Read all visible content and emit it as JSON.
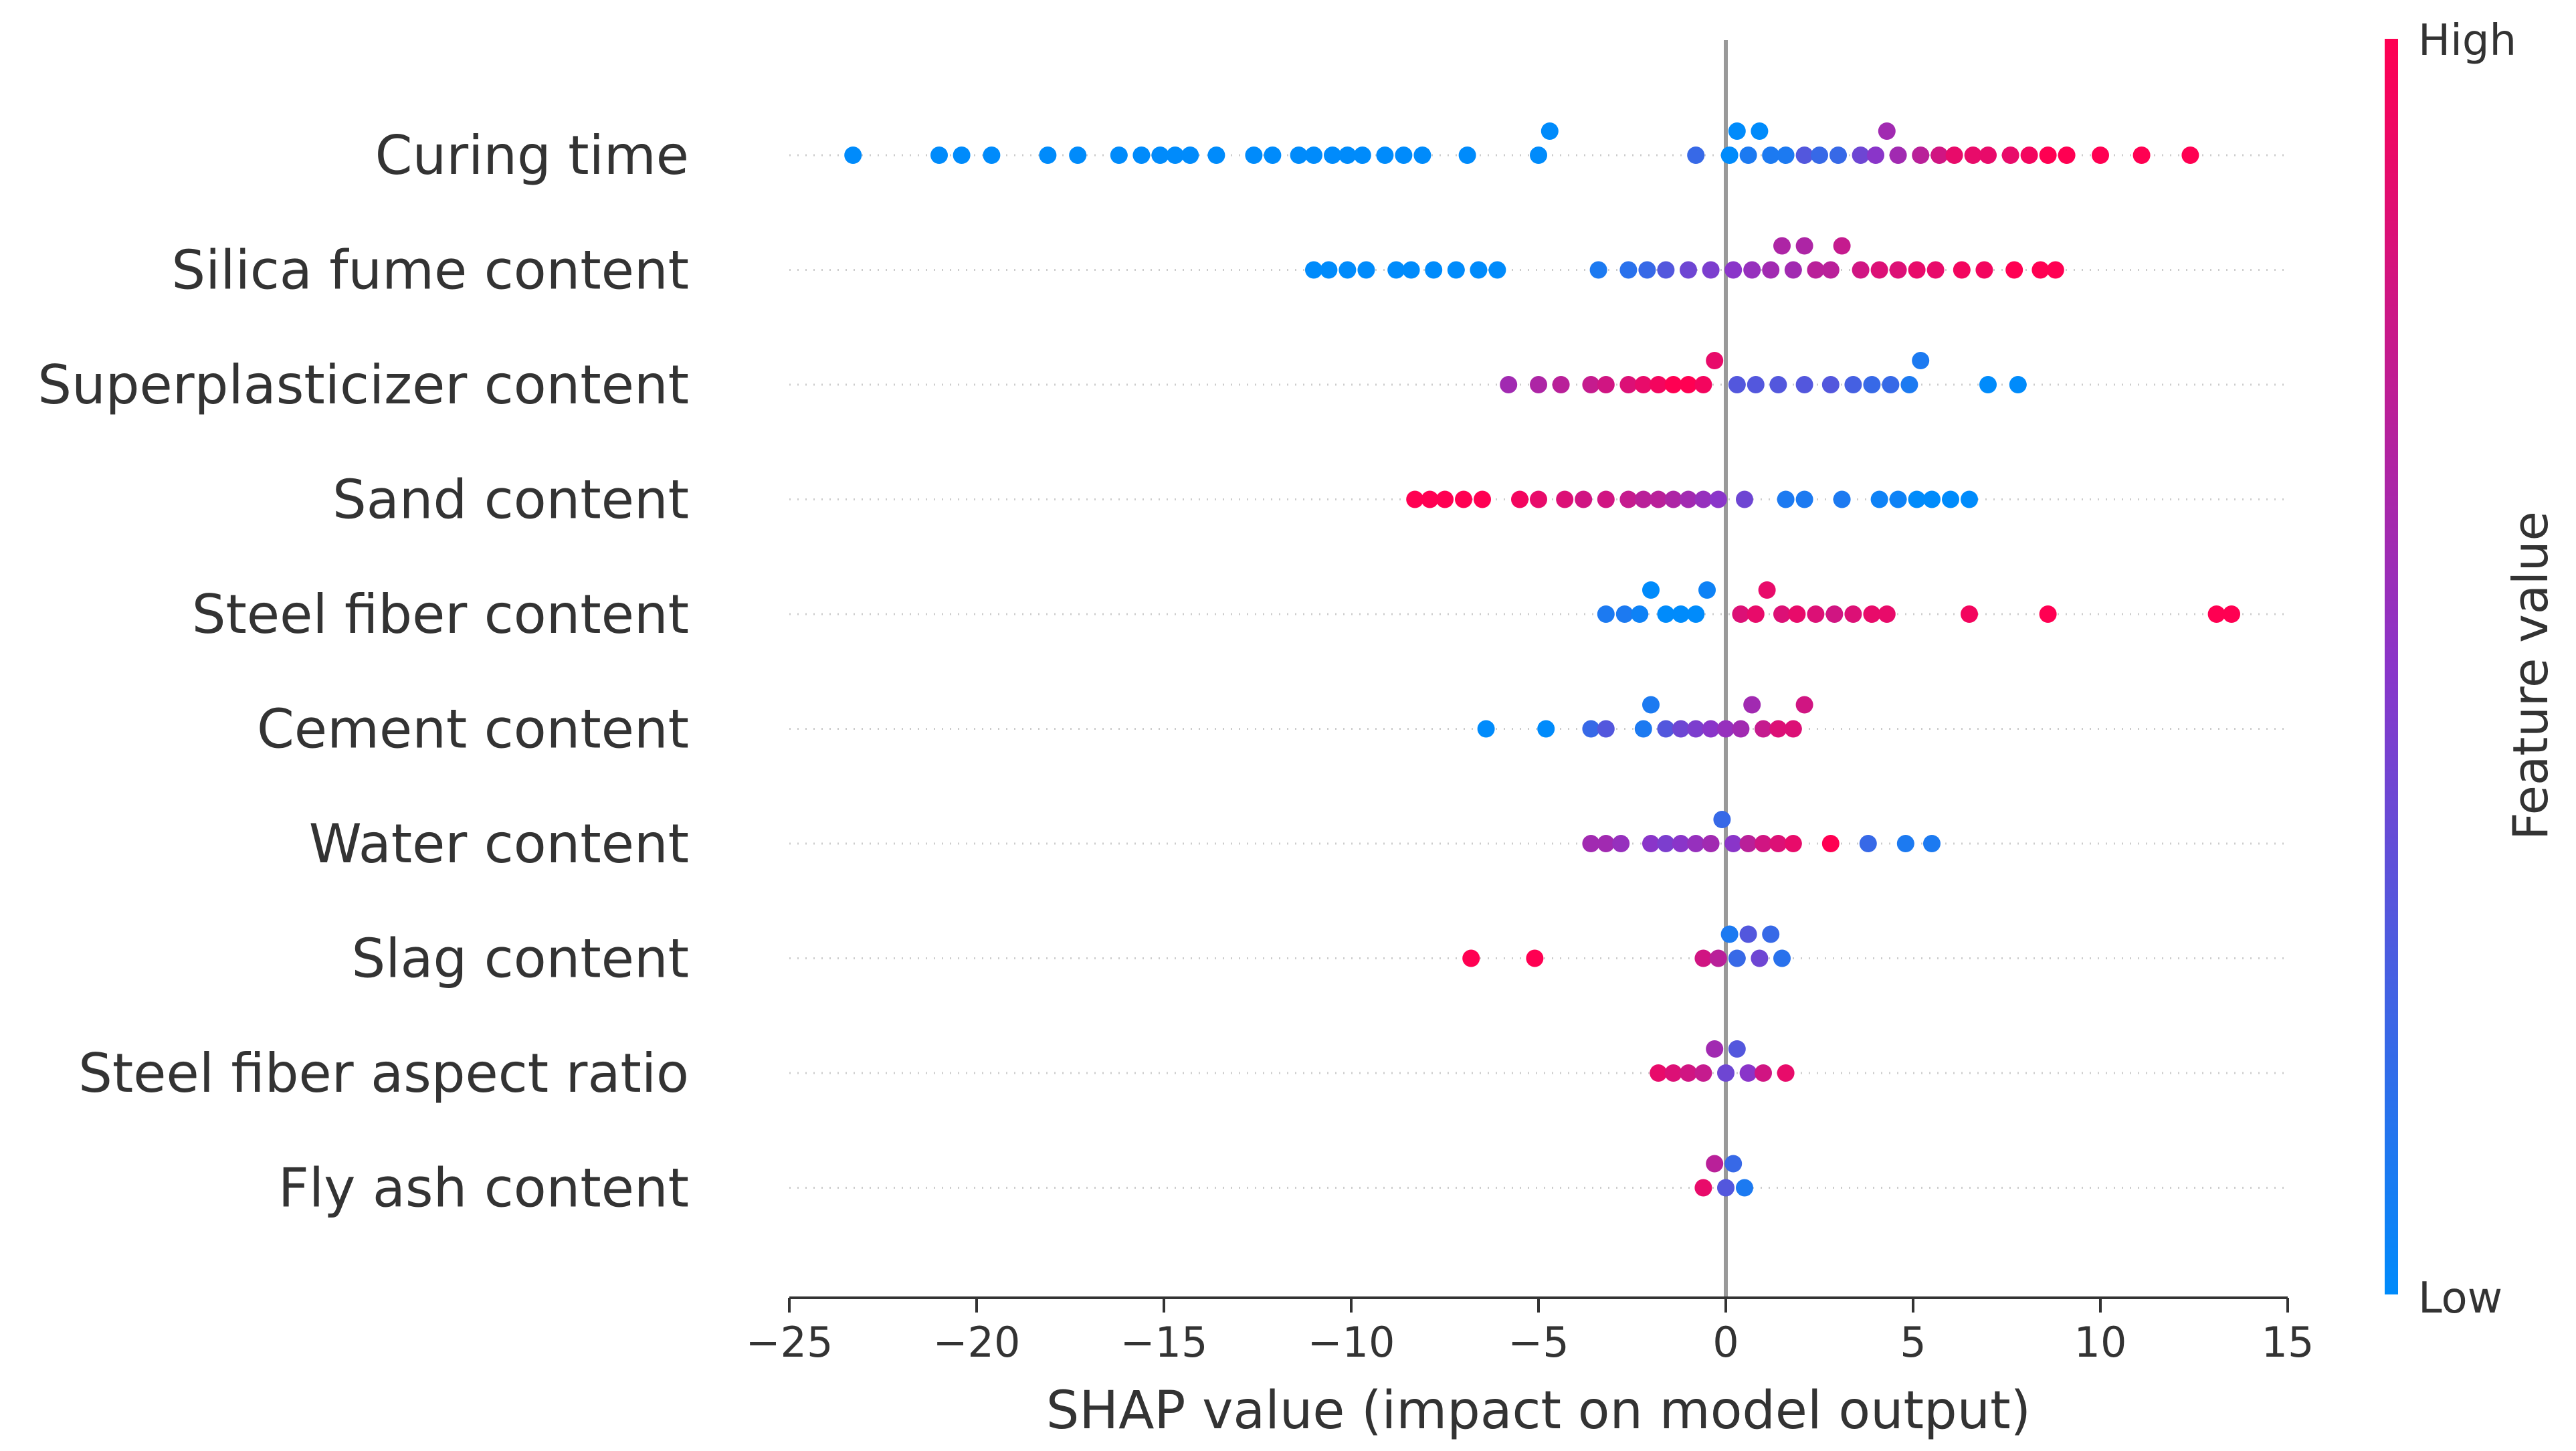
{
  "chart_data": {
    "type": "scatter",
    "subtype": "shap-beeswarm",
    "xlabel": "SHAP value (impact on model output)",
    "xlim": [
      -25,
      15
    ],
    "xticks": [
      -25,
      -20,
      -15,
      -10,
      -5,
      0,
      5,
      10,
      15
    ],
    "xtick_labels": [
      "−25",
      "−20",
      "−15",
      "−10",
      "−5",
      "0",
      "5",
      "10",
      "15"
    ],
    "colorbar": {
      "title": "Feature value",
      "high_label": "High",
      "low_label": "Low",
      "low_color": "#008bfb",
      "mid_color": "#8a35c9",
      "high_color": "#ff0052"
    },
    "series": [
      {
        "name": "Curing time",
        "points": [
          [
            -23.3,
            0
          ],
          [
            -21,
            0
          ],
          [
            -20.4,
            0
          ],
          [
            -19.6,
            0
          ],
          [
            -18.1,
            0
          ],
          [
            -17.3,
            0
          ],
          [
            -16.2,
            0
          ],
          [
            -15.6,
            0
          ],
          [
            -15.1,
            0
          ],
          [
            -14.7,
            0
          ],
          [
            -14.3,
            0
          ],
          [
            -13.6,
            0
          ],
          [
            -12.6,
            0
          ],
          [
            -12.1,
            0
          ],
          [
            -11.4,
            0
          ],
          [
            -11,
            0
          ],
          [
            -10.5,
            0
          ],
          [
            -10.1,
            0
          ],
          [
            -9.7,
            0
          ],
          [
            -9.1,
            0
          ],
          [
            -8.6,
            0
          ],
          [
            -8.1,
            0
          ],
          [
            -6.9,
            0
          ],
          [
            -5.0,
            0
          ],
          [
            -4.7,
            0
          ],
          [
            -0.8,
            0.2
          ],
          [
            0.1,
            0
          ],
          [
            0.3,
            0
          ],
          [
            0.6,
            0.1
          ],
          [
            0.9,
            0
          ],
          [
            1.2,
            0.1
          ],
          [
            1.6,
            0.1
          ],
          [
            2.1,
            0.3
          ],
          [
            2.5,
            0.2
          ],
          [
            3.0,
            0.2
          ],
          [
            3.6,
            0.4
          ],
          [
            4.0,
            0.5
          ],
          [
            4.3,
            0.6
          ],
          [
            4.6,
            0.6
          ],
          [
            5.2,
            0.7
          ],
          [
            5.7,
            0.8
          ],
          [
            6.1,
            0.9
          ],
          [
            6.6,
            0.9
          ],
          [
            7.0,
            0.9
          ],
          [
            7.6,
            0.9
          ],
          [
            8.1,
            0.95
          ],
          [
            8.6,
            1
          ],
          [
            9.1,
            1
          ],
          [
            10.0,
            1
          ],
          [
            11.1,
            1
          ],
          [
            12.4,
            1
          ]
        ]
      },
      {
        "name": "Silica fume content",
        "points": [
          [
            -11,
            0
          ],
          [
            -10.6,
            0
          ],
          [
            -10.1,
            0
          ],
          [
            -9.6,
            0
          ],
          [
            -8.8,
            0
          ],
          [
            -8.4,
            0
          ],
          [
            -7.8,
            0
          ],
          [
            -7.2,
            0
          ],
          [
            -6.6,
            0
          ],
          [
            -6.1,
            0
          ],
          [
            -3.4,
            0.1
          ],
          [
            -2.6,
            0.15
          ],
          [
            -2.1,
            0.2
          ],
          [
            -1.6,
            0.3
          ],
          [
            -1.0,
            0.4
          ],
          [
            -0.4,
            0.45
          ],
          [
            0.2,
            0.5
          ],
          [
            0.7,
            0.55
          ],
          [
            1.2,
            0.6
          ],
          [
            1.5,
            0.65
          ],
          [
            1.8,
            0.6
          ],
          [
            2.1,
            0.65
          ],
          [
            2.4,
            0.7
          ],
          [
            2.8,
            0.7
          ],
          [
            3.1,
            0.75
          ],
          [
            3.6,
            0.8
          ],
          [
            4.1,
            0.85
          ],
          [
            4.6,
            0.85
          ],
          [
            5.1,
            0.9
          ],
          [
            5.6,
            0.9
          ],
          [
            6.3,
            0.95
          ],
          [
            6.9,
            0.95
          ],
          [
            7.7,
            1
          ],
          [
            8.4,
            1
          ],
          [
            8.8,
            1
          ]
        ]
      },
      {
        "name": "Superplasticizer content",
        "points": [
          [
            -5.8,
            0.6
          ],
          [
            -5.0,
            0.65
          ],
          [
            -4.4,
            0.7
          ],
          [
            -3.6,
            0.75
          ],
          [
            -3.2,
            0.8
          ],
          [
            -2.6,
            0.85
          ],
          [
            -2.2,
            0.9
          ],
          [
            -1.8,
            0.95
          ],
          [
            -1.4,
            1
          ],
          [
            -1.0,
            1
          ],
          [
            -0.6,
            0.95
          ],
          [
            -0.3,
            0.9
          ],
          [
            0.3,
            0.3
          ],
          [
            0.8,
            0.3
          ],
          [
            1.4,
            0.3
          ],
          [
            2.1,
            0.3
          ],
          [
            2.8,
            0.3
          ],
          [
            3.4,
            0.25
          ],
          [
            3.9,
            0.2
          ],
          [
            4.4,
            0.2
          ],
          [
            4.9,
            0.1
          ],
          [
            5.2,
            0.1
          ],
          [
            7.0,
            0
          ],
          [
            7.8,
            0
          ]
        ]
      },
      {
        "name": "Sand content",
        "points": [
          [
            -8.3,
            1
          ],
          [
            -7.9,
            1
          ],
          [
            -7.5,
            1
          ],
          [
            -7.0,
            1
          ],
          [
            -6.5,
            1
          ],
          [
            -5.5,
            0.95
          ],
          [
            -5.0,
            0.9
          ],
          [
            -4.3,
            0.85
          ],
          [
            -3.8,
            0.8
          ],
          [
            -3.2,
            0.8
          ],
          [
            -2.6,
            0.75
          ],
          [
            -2.2,
            0.7
          ],
          [
            -1.8,
            0.7
          ],
          [
            -1.4,
            0.65
          ],
          [
            -1.0,
            0.6
          ],
          [
            -0.6,
            0.55
          ],
          [
            -0.2,
            0.5
          ],
          [
            0.5,
            0.4
          ],
          [
            1.6,
            0.1
          ],
          [
            2.1,
            0.1
          ],
          [
            3.1,
            0.1
          ],
          [
            4.1,
            0.05
          ],
          [
            4.6,
            0.05
          ],
          [
            5.1,
            0
          ],
          [
            5.5,
            0
          ],
          [
            6.0,
            0
          ],
          [
            6.5,
            0
          ]
        ]
      },
      {
        "name": "Steel fiber content",
        "points": [
          [
            -3.2,
            0.1
          ],
          [
            -2.7,
            0.1
          ],
          [
            -2.3,
            0.05
          ],
          [
            -2.0,
            0
          ],
          [
            -1.6,
            0
          ],
          [
            -1.2,
            0
          ],
          [
            -0.8,
            0
          ],
          [
            -0.5,
            0.05
          ],
          [
            0.4,
            0.85
          ],
          [
            0.8,
            0.9
          ],
          [
            1.1,
            0.9
          ],
          [
            1.5,
            0.85
          ],
          [
            1.9,
            0.9
          ],
          [
            2.4,
            0.85
          ],
          [
            2.9,
            0.8
          ],
          [
            3.4,
            0.85
          ],
          [
            3.9,
            0.9
          ],
          [
            4.3,
            0.9
          ],
          [
            6.5,
            0.95
          ],
          [
            8.6,
            1
          ],
          [
            13.1,
            1
          ],
          [
            13.5,
            1
          ]
        ]
      },
      {
        "name": "Cement content",
        "points": [
          [
            -6.4,
            0
          ],
          [
            -4.8,
            0
          ],
          [
            -3.6,
            0.2
          ],
          [
            -3.2,
            0.3
          ],
          [
            -2.2,
            0.1
          ],
          [
            -2.0,
            0.1
          ],
          [
            -1.6,
            0.3
          ],
          [
            -1.2,
            0.4
          ],
          [
            -0.8,
            0.45
          ],
          [
            -0.4,
            0.5
          ],
          [
            0,
            0.55
          ],
          [
            0.4,
            0.6
          ],
          [
            0.7,
            0.6
          ],
          [
            1.0,
            0.75
          ],
          [
            1.4,
            0.85
          ],
          [
            1.8,
            0.85
          ],
          [
            2.1,
            0.8
          ]
        ]
      },
      {
        "name": "Water content",
        "points": [
          [
            -3.6,
            0.6
          ],
          [
            -3.2,
            0.6
          ],
          [
            -2.8,
            0.55
          ],
          [
            -2.0,
            0.5
          ],
          [
            -1.6,
            0.45
          ],
          [
            -1.2,
            0.5
          ],
          [
            -0.8,
            0.55
          ],
          [
            -0.4,
            0.6
          ],
          [
            -0.1,
            0.2
          ],
          [
            0.2,
            0.5
          ],
          [
            0.6,
            0.7
          ],
          [
            1.0,
            0.8
          ],
          [
            1.4,
            0.85
          ],
          [
            1.8,
            0.9
          ],
          [
            2.8,
            1
          ],
          [
            3.8,
            0.2
          ],
          [
            4.8,
            0.1
          ],
          [
            5.5,
            0.1
          ]
        ]
      },
      {
        "name": "Slag content",
        "points": [
          [
            -6.8,
            1
          ],
          [
            -5.1,
            1
          ],
          [
            -0.6,
            0.8
          ],
          [
            -0.2,
            0.7
          ],
          [
            0.1,
            0.1
          ],
          [
            0.3,
            0.2
          ],
          [
            0.6,
            0.3
          ],
          [
            0.9,
            0.4
          ],
          [
            1.2,
            0.2
          ],
          [
            1.5,
            0.15
          ]
        ]
      },
      {
        "name": "Steel fiber aspect ratio",
        "points": [
          [
            -1.8,
            0.9
          ],
          [
            -1.4,
            0.85
          ],
          [
            -1.0,
            0.8
          ],
          [
            -0.6,
            0.75
          ],
          [
            -0.3,
            0.6
          ],
          [
            0,
            0.4
          ],
          [
            0.3,
            0.3
          ],
          [
            0.6,
            0.5
          ],
          [
            1.0,
            0.8
          ],
          [
            1.6,
            0.9
          ]
        ]
      },
      {
        "name": "Fly ash content",
        "points": [
          [
            -0.6,
            0.9
          ],
          [
            -0.3,
            0.7
          ],
          [
            0,
            0.3
          ],
          [
            0.2,
            0.2
          ],
          [
            0.5,
            0.1
          ]
        ]
      }
    ]
  }
}
